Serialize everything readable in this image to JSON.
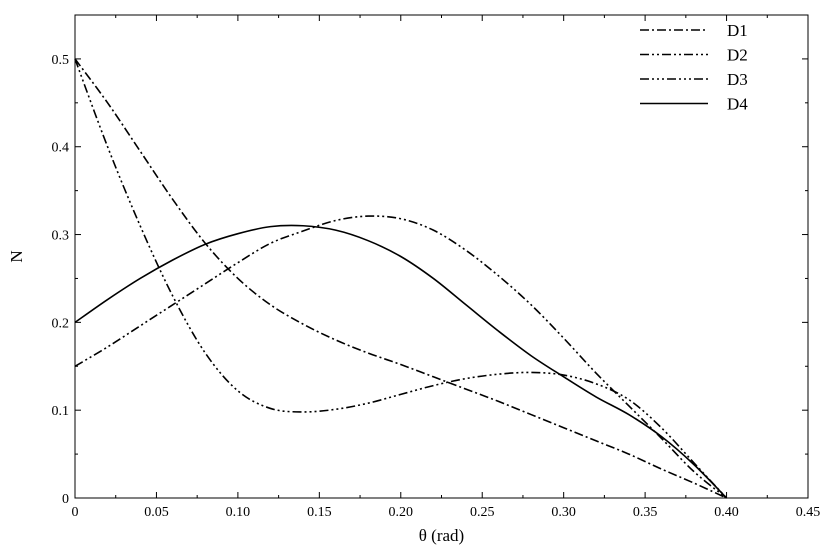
{
  "chart_data": {
    "type": "line",
    "xlabel": "θ (rad)",
    "ylabel": "N",
    "xlim": [
      0,
      0.45
    ],
    "ylim": [
      0,
      0.55
    ],
    "xticks": [
      "0",
      "0.05",
      "0.10",
      "0.15",
      "0.20",
      "0.25",
      "0.30",
      "0.35",
      "0.40",
      "0.45"
    ],
    "yticks": [
      "0",
      "0.1",
      "0.2",
      "0.3",
      "0.4",
      "0.5"
    ],
    "xtick_values": [
      0,
      0.05,
      0.1,
      0.15,
      0.2,
      0.25,
      0.3,
      0.35,
      0.4,
      0.45
    ],
    "ytick_values": [
      0,
      0.1,
      0.2,
      0.3,
      0.4,
      0.5
    ],
    "grid": false,
    "legend_position": "top-right",
    "series": [
      {
        "name": "D1",
        "dash": "dash-dot",
        "x": [
          0,
          0.02,
          0.04,
          0.06,
          0.08,
          0.1,
          0.12,
          0.14,
          0.16,
          0.18,
          0.2,
          0.22,
          0.24,
          0.26,
          0.28,
          0.3,
          0.32,
          0.34,
          0.36,
          0.38,
          0.4
        ],
        "y": [
          0.5,
          0.45,
          0.395,
          0.34,
          0.29,
          0.25,
          0.22,
          0.198,
          0.18,
          0.165,
          0.152,
          0.138,
          0.124,
          0.11,
          0.095,
          0.08,
          0.065,
          0.05,
          0.033,
          0.017,
          0.0
        ]
      },
      {
        "name": "D2",
        "dash": "dash-dot-dot",
        "x": [
          0,
          0.02,
          0.04,
          0.06,
          0.08,
          0.1,
          0.12,
          0.14,
          0.16,
          0.18,
          0.2,
          0.22,
          0.24,
          0.26,
          0.28,
          0.3,
          0.32,
          0.34,
          0.36,
          0.38,
          0.4
        ],
        "y": [
          0.15,
          0.172,
          0.196,
          0.22,
          0.244,
          0.268,
          0.29,
          0.304,
          0.316,
          0.321,
          0.318,
          0.305,
          0.282,
          0.253,
          0.22,
          0.182,
          0.142,
          0.105,
          0.068,
          0.03,
          0.0
        ]
      },
      {
        "name": "D3",
        "dash": "dash-dot-dot-dot",
        "x": [
          0,
          0.02,
          0.04,
          0.06,
          0.08,
          0.1,
          0.12,
          0.14,
          0.16,
          0.18,
          0.2,
          0.22,
          0.24,
          0.26,
          0.28,
          0.3,
          0.32,
          0.34,
          0.36,
          0.38,
          0.4
        ],
        "y": [
          0.5,
          0.4,
          0.31,
          0.23,
          0.165,
          0.122,
          0.102,
          0.098,
          0.101,
          0.108,
          0.118,
          0.128,
          0.136,
          0.141,
          0.143,
          0.14,
          0.13,
          0.112,
          0.08,
          0.04,
          0.0
        ]
      },
      {
        "name": "D4",
        "dash": "solid",
        "x": [
          0,
          0.02,
          0.04,
          0.06,
          0.08,
          0.1,
          0.12,
          0.14,
          0.16,
          0.18,
          0.2,
          0.22,
          0.24,
          0.26,
          0.28,
          0.3,
          0.32,
          0.34,
          0.36,
          0.38,
          0.4
        ],
        "y": [
          0.2,
          0.226,
          0.25,
          0.271,
          0.289,
          0.301,
          0.309,
          0.31,
          0.305,
          0.293,
          0.275,
          0.25,
          0.22,
          0.19,
          0.162,
          0.138,
          0.115,
          0.095,
          0.07,
          0.038,
          0.0
        ]
      }
    ]
  }
}
